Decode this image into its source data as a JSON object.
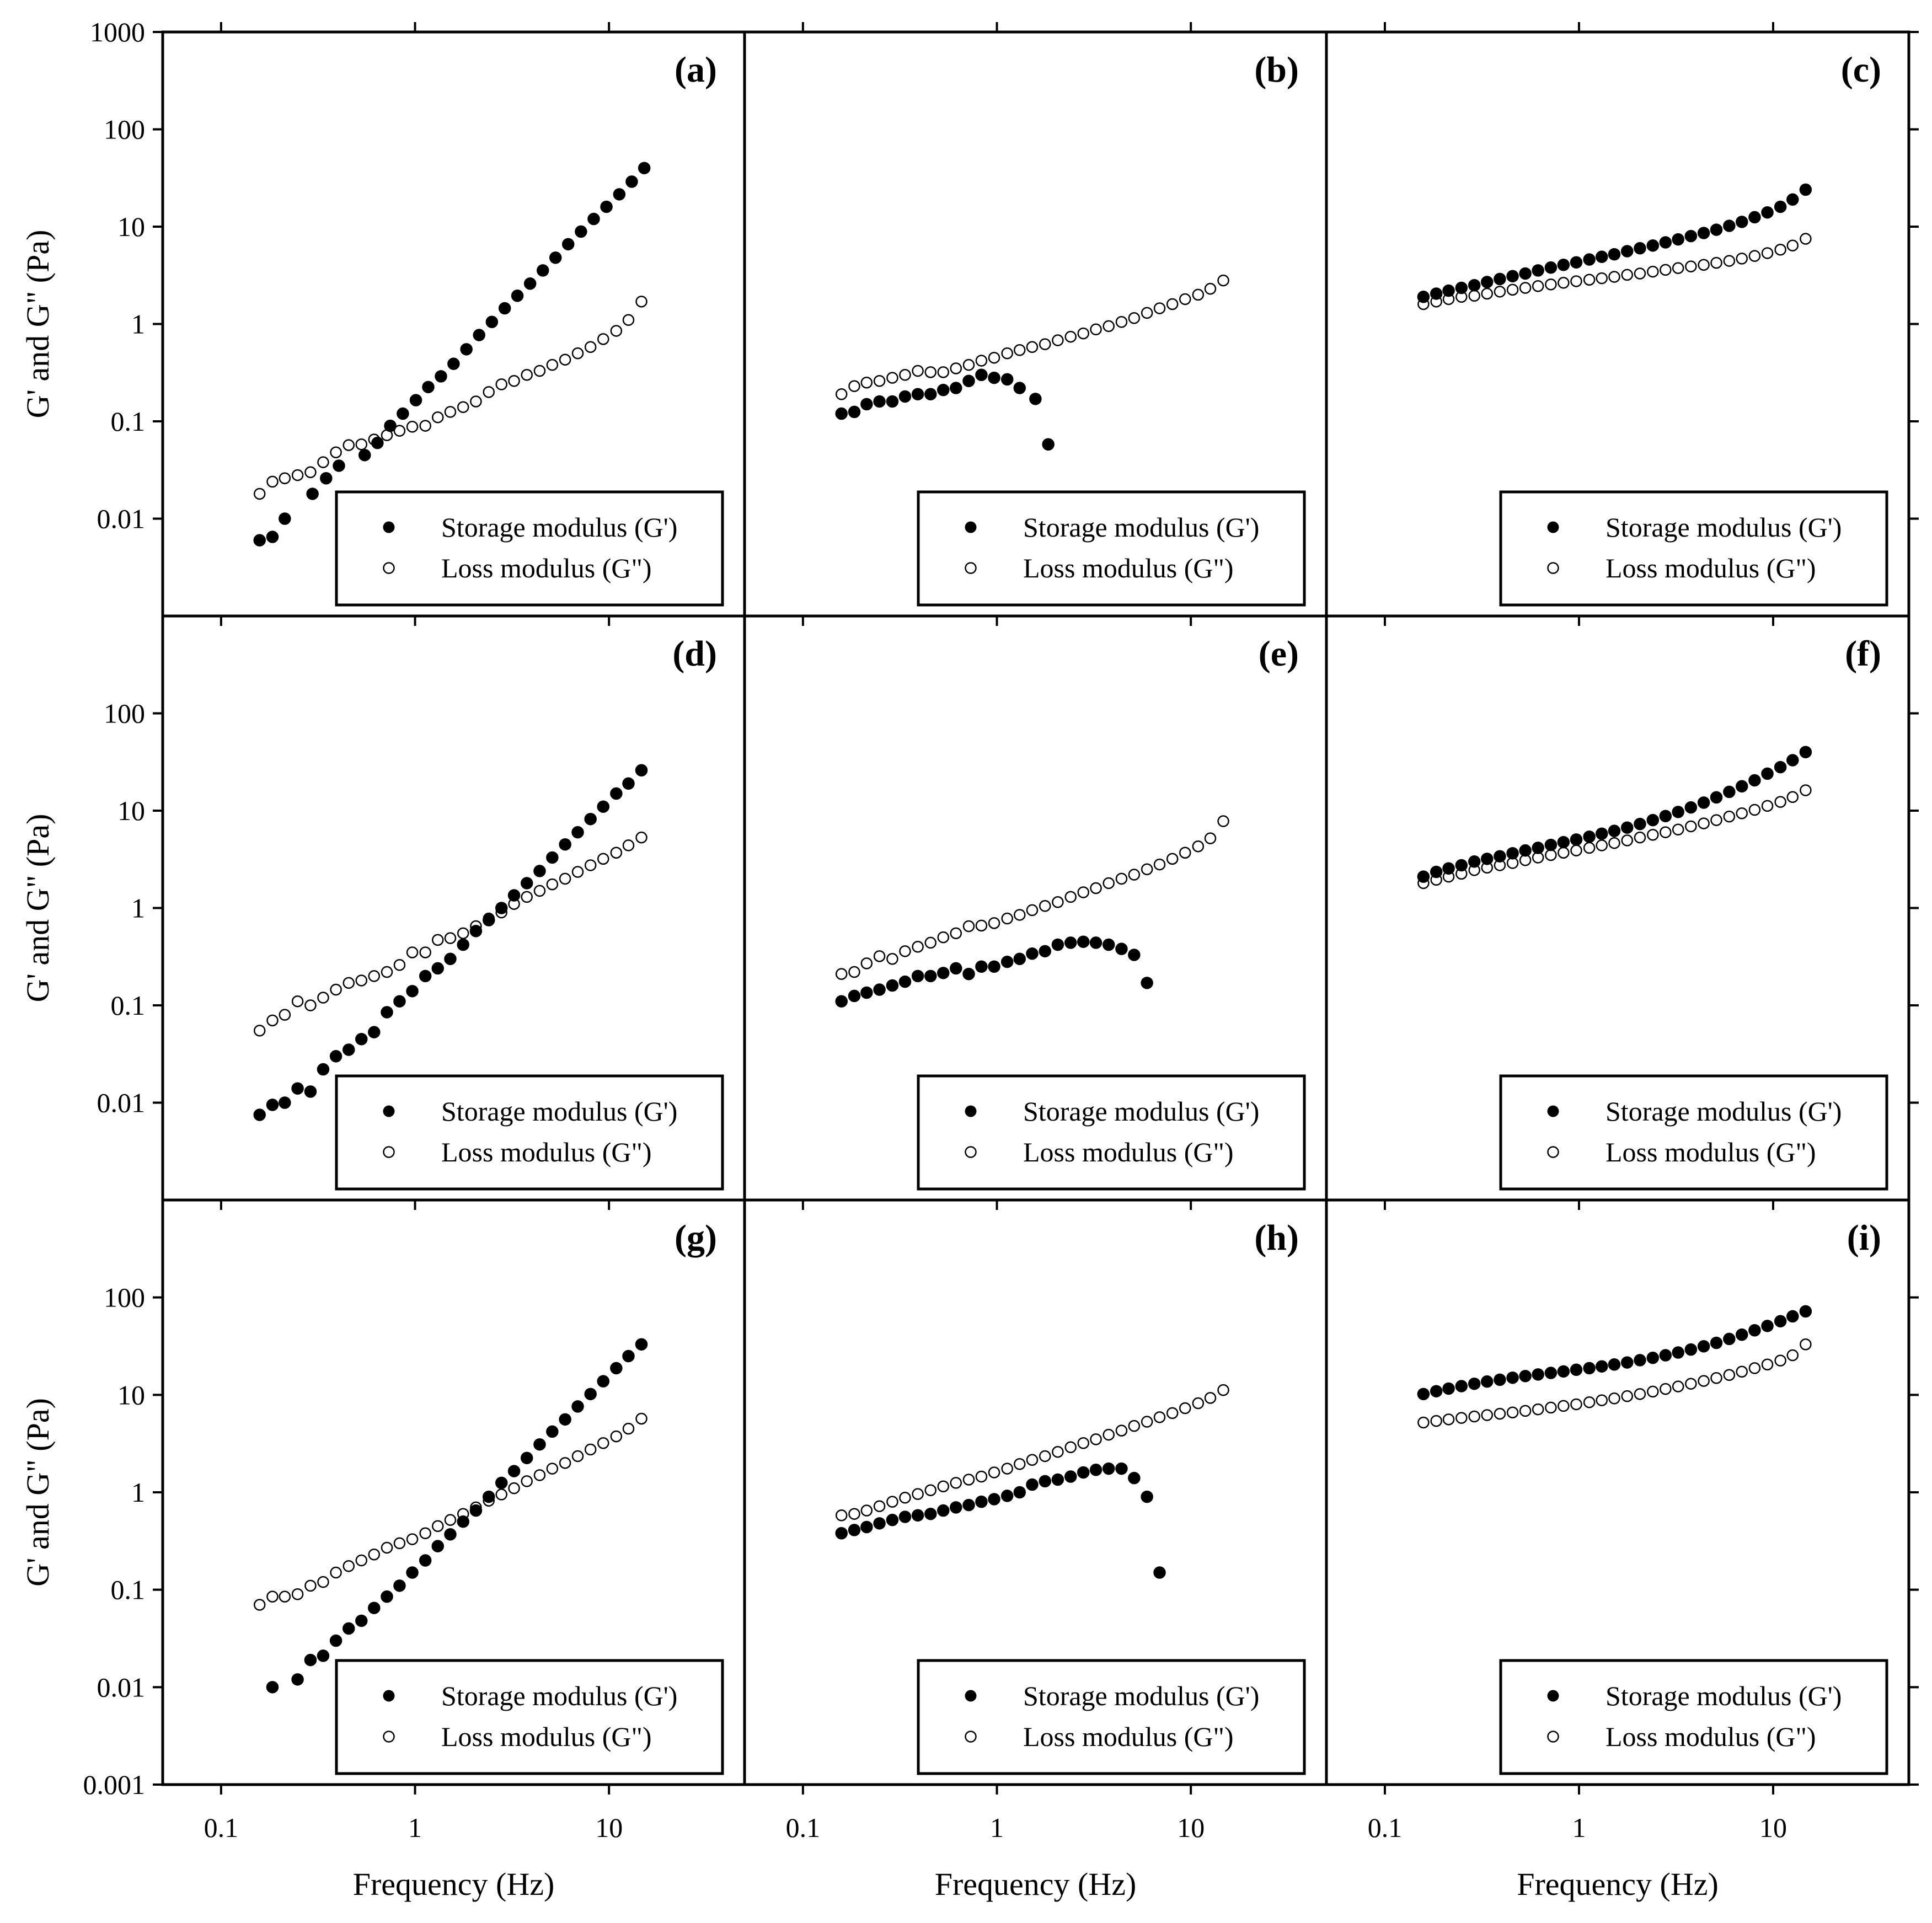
{
  "chart_data": {
    "type": "scatter",
    "layout": "3x3 grid with shared axes",
    "x_scale": "log",
    "y_scale": "log",
    "xlabel": "Frequency (Hz)",
    "ylabel": "G' and G\" (Pa)",
    "xlim": [
      0.05,
      50
    ],
    "ylim": [
      0.001,
      1000
    ],
    "x_ticks": [
      0.1,
      1,
      10
    ],
    "x_tick_labels": [
      "0.1",
      "1",
      "10"
    ],
    "y_ticks_row1": [
      0.01,
      0.1,
      1,
      10,
      100,
      1000
    ],
    "y_tick_labels_row1": [
      "0.01",
      "0.1",
      "1",
      "10",
      "100",
      "1000"
    ],
    "y_ticks_row2": [
      0.01,
      0.1,
      1,
      10,
      100
    ],
    "y_tick_labels_row2": [
      "0.01",
      "0.1",
      "1",
      "10",
      "100"
    ],
    "y_ticks_row3": [
      0.001,
      0.01,
      0.1,
      1,
      10,
      100
    ],
    "y_tick_labels_row3": [
      "0.001",
      "0.01",
      "0.1",
      "1",
      "10",
      "100"
    ],
    "legend": [
      "Storage modulus (G')",
      "Loss modulus (G\")"
    ],
    "legend_location": "lower-right",
    "series_style": {
      "storage": "filled circle",
      "loss": "open circle"
    },
    "panels": [
      {
        "label": "(a)",
        "storage_x": [
          0.158,
          0.184,
          0.213,
          0.296,
          0.348,
          0.405,
          0.55,
          0.64,
          0.745,
          0.865,
          1.01,
          1.17,
          1.36,
          1.58,
          1.84,
          2.14,
          2.49,
          2.9,
          3.37,
          3.92,
          4.56,
          5.3,
          6.16,
          7.17,
          8.34,
          9.7,
          11.3,
          13.1,
          15.2
        ],
        "storage_y": [
          0.006,
          0.0065,
          0.01,
          0.018,
          0.026,
          0.035,
          0.045,
          0.06,
          0.09,
          0.12,
          0.165,
          0.225,
          0.29,
          0.39,
          0.55,
          0.77,
          1.05,
          1.45,
          1.95,
          2.6,
          3.55,
          4.8,
          6.6,
          8.9,
          12,
          16,
          21.5,
          29,
          40
        ],
        "loss_x": [
          0.158,
          0.184,
          0.213,
          0.248,
          0.289,
          0.336,
          0.391,
          0.455,
          0.529,
          0.615,
          0.716,
          0.832,
          0.968,
          1.13,
          1.31,
          1.52,
          1.77,
          2.06,
          2.4,
          2.79,
          3.24,
          3.77,
          4.39,
          5.1,
          5.94,
          6.9,
          8.03,
          9.34,
          10.9,
          12.6,
          14.7
        ],
        "loss_y": [
          0.018,
          0.024,
          0.026,
          0.028,
          0.03,
          0.038,
          0.048,
          0.057,
          0.058,
          0.065,
          0.072,
          0.08,
          0.088,
          0.09,
          0.11,
          0.125,
          0.14,
          0.16,
          0.2,
          0.24,
          0.26,
          0.3,
          0.33,
          0.38,
          0.43,
          0.5,
          0.58,
          0.7,
          0.85,
          1.1,
          1.7
        ]
      },
      {
        "label": "(b)",
        "storage_x": [
          0.158,
          0.184,
          0.213,
          0.248,
          0.289,
          0.336,
          0.391,
          0.455,
          0.529,
          0.615,
          0.716,
          0.832,
          0.968,
          1.13,
          1.31,
          1.58,
          1.84
        ],
        "storage_y": [
          0.12,
          0.125,
          0.15,
          0.16,
          0.16,
          0.18,
          0.19,
          0.19,
          0.21,
          0.22,
          0.26,
          0.3,
          0.28,
          0.27,
          0.22,
          0.17,
          0.058
        ],
        "loss_x": [
          0.158,
          0.184,
          0.213,
          0.248,
          0.289,
          0.336,
          0.391,
          0.455,
          0.529,
          0.615,
          0.716,
          0.832,
          0.968,
          1.13,
          1.31,
          1.52,
          1.77,
          2.06,
          2.4,
          2.79,
          3.24,
          3.77,
          4.39,
          5.1,
          5.94,
          6.9,
          8.03,
          9.34,
          10.9,
          12.6,
          14.7
        ],
        "loss_y": [
          0.19,
          0.23,
          0.25,
          0.26,
          0.28,
          0.3,
          0.33,
          0.32,
          0.32,
          0.35,
          0.38,
          0.42,
          0.45,
          0.5,
          0.54,
          0.58,
          0.62,
          0.68,
          0.74,
          0.8,
          0.88,
          0.95,
          1.05,
          1.15,
          1.3,
          1.45,
          1.6,
          1.8,
          2,
          2.3,
          2.8
        ]
      },
      {
        "label": "(c)",
        "storage_x": [
          0.158,
          0.184,
          0.213,
          0.248,
          0.289,
          0.336,
          0.391,
          0.455,
          0.529,
          0.615,
          0.716,
          0.832,
          0.968,
          1.13,
          1.31,
          1.52,
          1.77,
          2.06,
          2.4,
          2.79,
          3.24,
          3.77,
          4.39,
          5.1,
          5.94,
          6.9,
          8.03,
          9.34,
          10.9,
          12.6,
          14.7
        ],
        "storage_y": [
          1.9,
          2.05,
          2.2,
          2.35,
          2.5,
          2.7,
          2.9,
          3.1,
          3.3,
          3.55,
          3.8,
          4.05,
          4.3,
          4.6,
          4.9,
          5.2,
          5.6,
          6,
          6.4,
          6.9,
          7.4,
          8,
          8.6,
          9.3,
          10.2,
          11.2,
          12.5,
          14,
          16,
          19,
          24
        ],
        "loss_x": [
          0.158,
          0.184,
          0.213,
          0.248,
          0.289,
          0.336,
          0.391,
          0.455,
          0.529,
          0.615,
          0.716,
          0.832,
          0.968,
          1.13,
          1.31,
          1.52,
          1.77,
          2.06,
          2.4,
          2.79,
          3.24,
          3.77,
          4.39,
          5.1,
          5.94,
          6.9,
          8.03,
          9.34,
          10.9,
          12.6,
          14.7
        ],
        "loss_y": [
          1.6,
          1.7,
          1.8,
          1.9,
          1.95,
          2.05,
          2.15,
          2.25,
          2.35,
          2.45,
          2.55,
          2.65,
          2.75,
          2.85,
          2.95,
          3.05,
          3.2,
          3.3,
          3.45,
          3.6,
          3.75,
          3.9,
          4.05,
          4.25,
          4.45,
          4.7,
          5,
          5.35,
          5.8,
          6.4,
          7.5
        ]
      },
      {
        "label": "(d)",
        "storage_x": [
          0.158,
          0.184,
          0.213,
          0.248,
          0.289,
          0.336,
          0.391,
          0.455,
          0.529,
          0.615,
          0.716,
          0.832,
          0.968,
          1.13,
          1.31,
          1.52,
          1.77,
          2.06,
          2.4,
          2.79,
          3.24,
          3.77,
          4.39,
          5.1,
          5.94,
          6.9,
          8.03,
          9.34,
          10.9,
          12.6,
          14.7
        ],
        "storage_y": [
          0.0075,
          0.0095,
          0.01,
          0.014,
          0.013,
          0.022,
          0.03,
          0.035,
          0.045,
          0.053,
          0.085,
          0.11,
          0.14,
          0.2,
          0.24,
          0.3,
          0.42,
          0.58,
          0.75,
          1.0,
          1.35,
          1.8,
          2.4,
          3.3,
          4.5,
          6.0,
          8.2,
          11,
          15,
          19,
          26
        ],
        "loss_x": [
          0.158,
          0.184,
          0.213,
          0.248,
          0.289,
          0.336,
          0.391,
          0.455,
          0.529,
          0.615,
          0.716,
          0.832,
          0.968,
          1.13,
          1.31,
          1.52,
          1.77,
          2.06,
          2.4,
          2.79,
          3.24,
          3.77,
          4.39,
          5.1,
          5.94,
          6.9,
          8.03,
          9.34,
          10.9,
          12.6,
          14.7
        ],
        "loss_y": [
          0.055,
          0.07,
          0.08,
          0.11,
          0.1,
          0.12,
          0.145,
          0.17,
          0.18,
          0.2,
          0.22,
          0.26,
          0.35,
          0.35,
          0.47,
          0.49,
          0.55,
          0.65,
          0.78,
          0.9,
          1.1,
          1.3,
          1.5,
          1.75,
          2.0,
          2.35,
          2.75,
          3.2,
          3.7,
          4.4,
          5.3
        ]
      },
      {
        "label": "(e)",
        "storage_x": [
          0.158,
          0.184,
          0.213,
          0.248,
          0.289,
          0.336,
          0.391,
          0.455,
          0.529,
          0.615,
          0.716,
          0.832,
          0.968,
          1.13,
          1.31,
          1.52,
          1.77,
          2.06,
          2.4,
          2.79,
          3.24,
          3.77,
          4.39,
          5.1,
          5.94
        ],
        "storage_y": [
          0.11,
          0.125,
          0.135,
          0.145,
          0.16,
          0.175,
          0.2,
          0.2,
          0.215,
          0.24,
          0.21,
          0.25,
          0.25,
          0.28,
          0.3,
          0.34,
          0.36,
          0.42,
          0.44,
          0.45,
          0.44,
          0.42,
          0.38,
          0.33,
          0.17
        ],
        "loss_x": [
          0.158,
          0.184,
          0.213,
          0.248,
          0.289,
          0.336,
          0.391,
          0.455,
          0.529,
          0.615,
          0.716,
          0.832,
          0.968,
          1.13,
          1.31,
          1.52,
          1.77,
          2.06,
          2.4,
          2.79,
          3.24,
          3.77,
          4.39,
          5.1,
          5.94,
          6.9,
          8.03,
          9.34,
          10.9,
          12.6,
          14.7
        ],
        "loss_y": [
          0.21,
          0.22,
          0.27,
          0.32,
          0.3,
          0.36,
          0.4,
          0.44,
          0.5,
          0.55,
          0.65,
          0.66,
          0.7,
          0.78,
          0.85,
          0.95,
          1.05,
          1.15,
          1.3,
          1.45,
          1.6,
          1.8,
          2.0,
          2.2,
          2.5,
          2.8,
          3.2,
          3.7,
          4.3,
          5.2,
          7.8
        ]
      },
      {
        "label": "(f)",
        "storage_x": [
          0.158,
          0.184,
          0.213,
          0.248,
          0.289,
          0.336,
          0.391,
          0.455,
          0.529,
          0.615,
          0.716,
          0.832,
          0.968,
          1.13,
          1.31,
          1.52,
          1.77,
          2.06,
          2.4,
          2.79,
          3.24,
          3.77,
          4.39,
          5.1,
          5.94,
          6.9,
          8.03,
          9.34,
          10.9,
          12.6,
          14.7
        ],
        "storage_y": [
          2.1,
          2.35,
          2.55,
          2.75,
          3.0,
          3.2,
          3.4,
          3.65,
          3.9,
          4.15,
          4.45,
          4.75,
          5.05,
          5.4,
          5.8,
          6.2,
          6.7,
          7.3,
          8.0,
          8.8,
          9.7,
          10.8,
          12.1,
          13.7,
          15.6,
          17.8,
          20.5,
          24,
          28,
          33,
          40
        ],
        "loss_x": [
          0.158,
          0.184,
          0.213,
          0.248,
          0.289,
          0.336,
          0.391,
          0.455,
          0.529,
          0.615,
          0.716,
          0.832,
          0.968,
          1.13,
          1.31,
          1.52,
          1.77,
          2.06,
          2.4,
          2.79,
          3.24,
          3.77,
          4.39,
          5.1,
          5.94,
          6.9,
          8.03,
          9.34,
          10.9,
          12.6,
          14.7
        ],
        "loss_y": [
          1.8,
          1.95,
          2.1,
          2.25,
          2.45,
          2.6,
          2.75,
          2.9,
          3.1,
          3.3,
          3.5,
          3.7,
          3.9,
          4.15,
          4.4,
          4.65,
          4.95,
          5.3,
          5.65,
          6.0,
          6.4,
          6.9,
          7.4,
          8.0,
          8.7,
          9.4,
          10.2,
          11.2,
          12.3,
          13.8,
          16.2
        ]
      },
      {
        "label": "(g)",
        "storage_x": [
          0.184,
          0.248,
          0.289,
          0.336,
          0.391,
          0.455,
          0.529,
          0.615,
          0.716,
          0.832,
          0.968,
          1.13,
          1.31,
          1.52,
          1.77,
          2.06,
          2.4,
          2.79,
          3.24,
          3.77,
          4.39,
          5.1,
          5.94,
          6.9,
          8.03,
          9.34,
          10.9,
          12.6,
          14.7
        ],
        "storage_y": [
          0.01,
          0.012,
          0.019,
          0.021,
          0.03,
          0.04,
          0.048,
          0.065,
          0.085,
          0.11,
          0.15,
          0.2,
          0.28,
          0.37,
          0.5,
          0.65,
          0.9,
          1.25,
          1.65,
          2.25,
          3.1,
          4.2,
          5.6,
          7.6,
          10.2,
          13.8,
          18.8,
          25,
          33
        ],
        "loss_x": [
          0.158,
          0.184,
          0.213,
          0.248,
          0.289,
          0.336,
          0.391,
          0.455,
          0.529,
          0.615,
          0.716,
          0.832,
          0.968,
          1.13,
          1.31,
          1.52,
          1.77,
          2.06,
          2.4,
          2.79,
          3.24,
          3.77,
          4.39,
          5.1,
          5.94,
          6.9,
          8.03,
          9.34,
          10.9,
          12.6,
          14.7
        ],
        "loss_y": [
          0.07,
          0.085,
          0.085,
          0.09,
          0.11,
          0.12,
          0.15,
          0.175,
          0.2,
          0.23,
          0.27,
          0.3,
          0.33,
          0.38,
          0.45,
          0.52,
          0.6,
          0.7,
          0.82,
          0.95,
          1.1,
          1.3,
          1.5,
          1.75,
          2.0,
          2.35,
          2.75,
          3.2,
          3.75,
          4.5,
          5.7
        ]
      },
      {
        "label": "(h)",
        "storage_x": [
          0.158,
          0.184,
          0.213,
          0.248,
          0.289,
          0.336,
          0.391,
          0.455,
          0.529,
          0.615,
          0.716,
          0.832,
          0.968,
          1.13,
          1.31,
          1.52,
          1.77,
          2.06,
          2.4,
          2.79,
          3.24,
          3.77,
          4.39,
          5.1,
          5.94,
          6.9
        ],
        "storage_y": [
          0.38,
          0.41,
          0.44,
          0.48,
          0.52,
          0.56,
          0.58,
          0.6,
          0.65,
          0.7,
          0.74,
          0.8,
          0.85,
          0.92,
          1.0,
          1.2,
          1.3,
          1.35,
          1.45,
          1.6,
          1.7,
          1.75,
          1.75,
          1.4,
          0.9,
          0.15
        ],
        "loss_x": [
          0.158,
          0.184,
          0.213,
          0.248,
          0.289,
          0.336,
          0.391,
          0.455,
          0.529,
          0.615,
          0.716,
          0.832,
          0.968,
          1.13,
          1.31,
          1.52,
          1.77,
          2.06,
          2.4,
          2.79,
          3.24,
          3.77,
          4.39,
          5.1,
          5.94,
          6.9,
          8.03,
          9.34,
          10.9,
          12.6,
          14.7
        ],
        "loss_y": [
          0.58,
          0.6,
          0.65,
          0.72,
          0.8,
          0.88,
          0.96,
          1.05,
          1.15,
          1.25,
          1.35,
          1.45,
          1.6,
          1.75,
          1.95,
          2.15,
          2.35,
          2.6,
          2.9,
          3.2,
          3.5,
          3.9,
          4.3,
          4.8,
          5.3,
          5.9,
          6.5,
          7.3,
          8.2,
          9.3,
          11.2
        ]
      },
      {
        "label": "(i)",
        "storage_x": [
          0.158,
          0.184,
          0.213,
          0.248,
          0.289,
          0.336,
          0.391,
          0.455,
          0.529,
          0.615,
          0.716,
          0.832,
          0.968,
          1.13,
          1.31,
          1.52,
          1.77,
          2.06,
          2.4,
          2.79,
          3.24,
          3.77,
          4.39,
          5.1,
          5.94,
          6.9,
          8.03,
          9.34,
          10.9,
          12.6,
          14.7
        ],
        "storage_y": [
          10.2,
          10.9,
          11.6,
          12.3,
          13.0,
          13.7,
          14.3,
          15.0,
          15.6,
          16.2,
          16.8,
          17.4,
          18.1,
          18.8,
          19.6,
          20.5,
          21.5,
          22.7,
          24.0,
          25.5,
          27.2,
          29.2,
          31.5,
          34.2,
          37.5,
          41.5,
          46,
          51,
          57,
          64,
          72
        ],
        "loss_x": [
          0.158,
          0.184,
          0.213,
          0.248,
          0.289,
          0.336,
          0.391,
          0.455,
          0.529,
          0.615,
          0.716,
          0.832,
          0.968,
          1.13,
          1.31,
          1.52,
          1.77,
          2.06,
          2.4,
          2.79,
          3.24,
          3.77,
          4.39,
          5.1,
          5.94,
          6.9,
          8.03,
          9.34,
          10.9,
          12.6,
          14.7
        ],
        "loss_y": [
          5.2,
          5.4,
          5.6,
          5.8,
          6.0,
          6.2,
          6.4,
          6.6,
          6.85,
          7.1,
          7.4,
          7.7,
          8.0,
          8.4,
          8.8,
          9.2,
          9.7,
          10.2,
          10.8,
          11.5,
          12.2,
          13.0,
          13.9,
          14.9,
          16.0,
          17.3,
          18.8,
          20.5,
          22.5,
          25.5,
          33
        ]
      }
    ]
  }
}
